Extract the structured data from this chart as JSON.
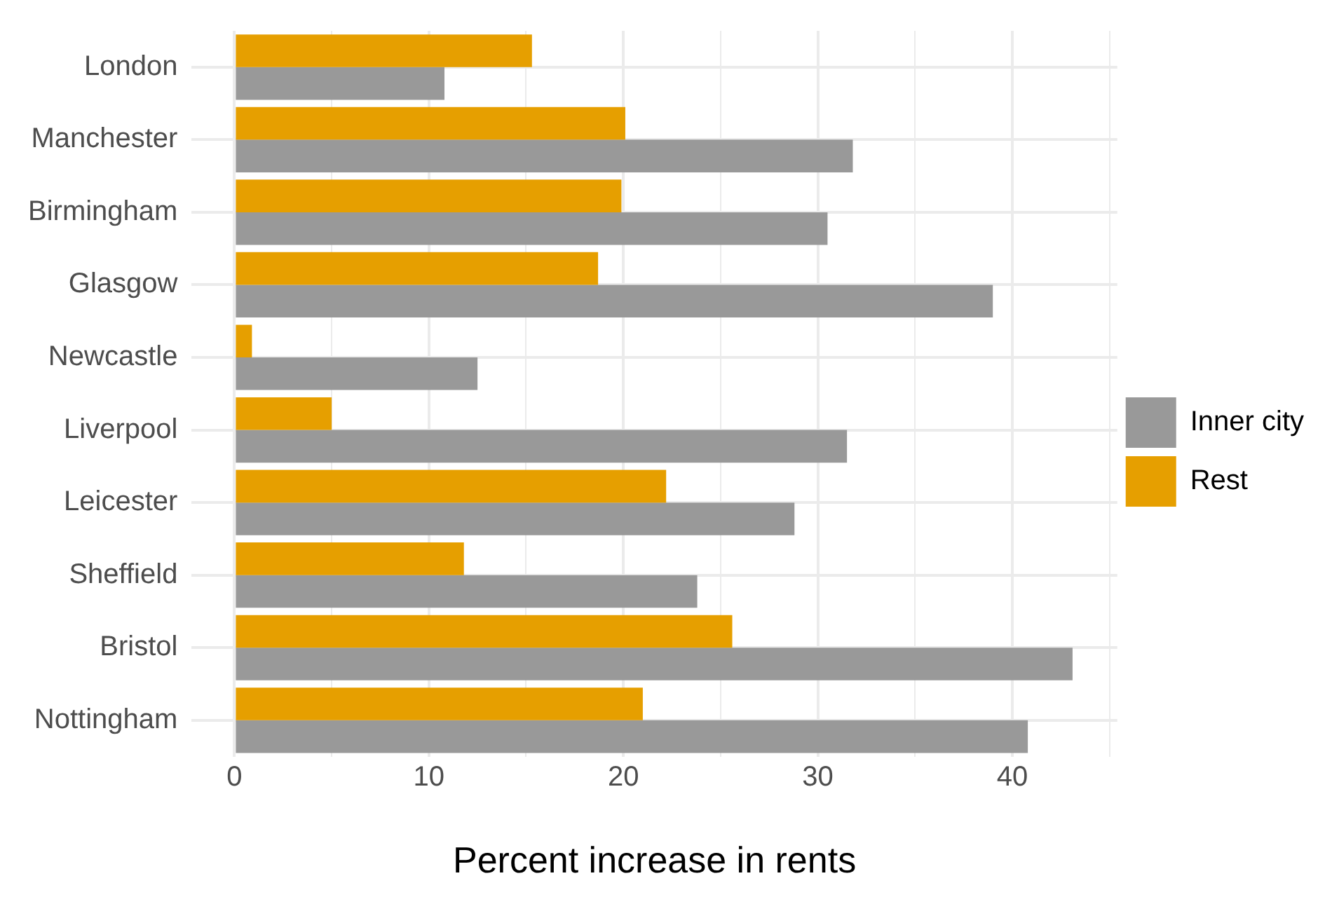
{
  "chart_data": {
    "type": "bar",
    "orientation": "horizontal",
    "xlabel": "Percent increase in rents",
    "categories": [
      "London",
      "Manchester",
      "Birmingham",
      "Glasgow",
      "Newcastle",
      "Liverpool",
      "Leicester",
      "Sheffield",
      "Bristol",
      "Nottingham"
    ],
    "series": [
      {
        "name": "Inner city",
        "color": "#999999",
        "values": [
          10.8,
          31.8,
          30.5,
          39.0,
          12.5,
          31.5,
          28.8,
          23.8,
          43.1,
          40.8
        ]
      },
      {
        "name": "Rest",
        "color": "#e69f00",
        "values": [
          15.3,
          20.1,
          19.9,
          18.7,
          0.9,
          5.0,
          22.2,
          11.8,
          25.6,
          21.0
        ]
      }
    ],
    "xlim": [
      -2.2,
      45.4
    ],
    "xticks": [
      0,
      {
        "value": 5,
        "label": null
      },
      10,
      {
        "value": 15,
        "label": null
      },
      20,
      {
        "value": 25,
        "label": null
      },
      30,
      {
        "value": 35,
        "label": null
      },
      40,
      {
        "value": 45,
        "label": null
      }
    ],
    "grid": true,
    "legend": "right"
  }
}
